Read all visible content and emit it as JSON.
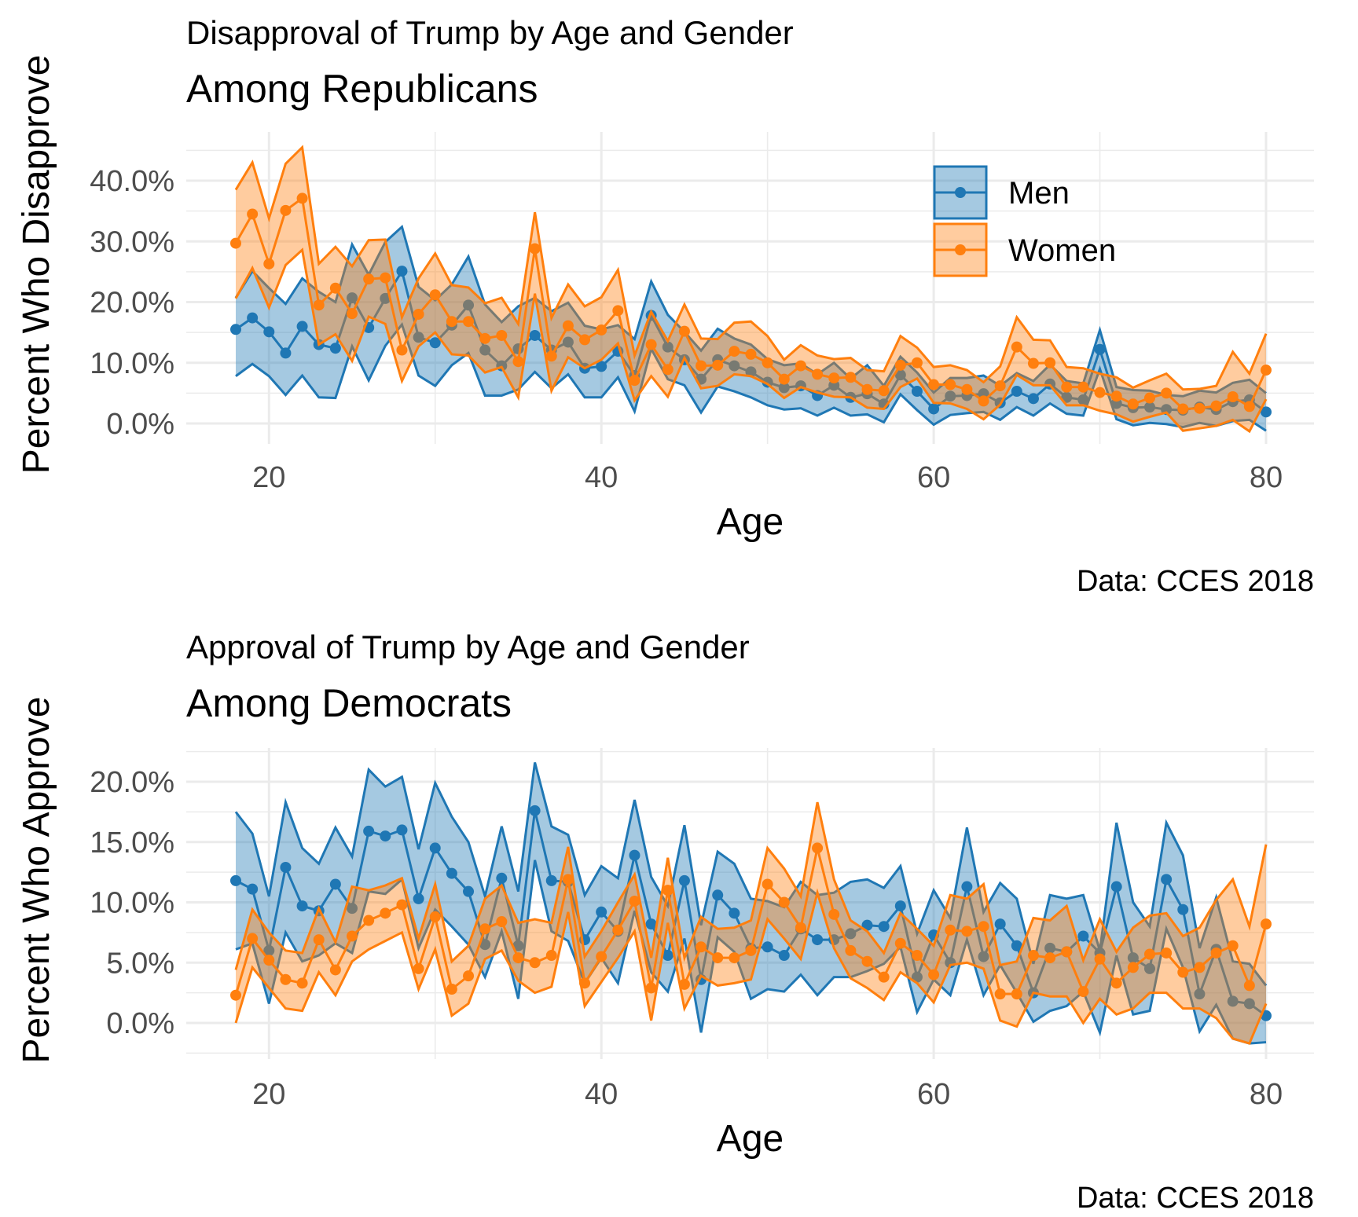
{
  "colors": {
    "men": "#1f77b4",
    "women": "#ff7f0e",
    "grid": "#ebebeb"
  },
  "legend": {
    "position": "top-right",
    "items": [
      "Men",
      "Women"
    ]
  },
  "chart_data": [
    {
      "type": "line",
      "title": "Disapproval of Trump by Age and Gender",
      "subtitle": "Among Republicans",
      "xlabel": "Age",
      "ylabel": "Percent Who Disapprove",
      "caption": "Data: CCES 2018",
      "xlim": [
        18,
        80
      ],
      "ylim": [
        -4,
        48
      ],
      "x_ticks": [
        20,
        40,
        60,
        80
      ],
      "y_ticks": [
        0,
        0.1,
        0.2,
        0.3,
        0.4
      ],
      "y_tick_labels": [
        "0.0%",
        "10.0%",
        "20.0%",
        "30.0%",
        "40.0%"
      ],
      "grid": true,
      "legend_position": "top-right",
      "x": [
        18,
        19,
        20,
        21,
        22,
        23,
        24,
        25,
        26,
        27,
        28,
        29,
        30,
        31,
        32,
        33,
        34,
        35,
        36,
        37,
        38,
        39,
        40,
        41,
        42,
        43,
        44,
        45,
        46,
        47,
        48,
        49,
        50,
        51,
        52,
        53,
        54,
        55,
        56,
        57,
        58,
        59,
        60,
        61,
        62,
        63,
        64,
        65,
        66,
        67,
        68,
        69,
        70,
        71,
        72,
        73,
        74,
        75,
        76,
        77,
        78,
        79,
        80
      ],
      "series": [
        {
          "name": "Men",
          "values": [
            15.5,
            17.4,
            15.1,
            11.6,
            16.0,
            13.0,
            12.4,
            20.7,
            15.8,
            20.6,
            25.1,
            14.2,
            13.3,
            16.2,
            19.5,
            12.1,
            9.5,
            12.3,
            14.5,
            12.1,
            13.4,
            9.1,
            9.4,
            11.9,
            7.9,
            17.8,
            12.6,
            10.5,
            7.3,
            10.5,
            9.5,
            8.5,
            6.8,
            5.9,
            6.2,
            4.6,
            6.3,
            4.3,
            4.9,
            3.2,
            8.0,
            5.3,
            2.4,
            4.5,
            4.6,
            4.9,
            3.4,
            5.3,
            4.1,
            6.5,
            4.3,
            3.9,
            12.2,
            3.3,
            2.6,
            2.7,
            2.3,
            2.2,
            2.7,
            2.3,
            3.6,
            3.9,
            1.9
          ],
          "lower": [
            7.8,
            9.8,
            7.8,
            4.7,
            7.9,
            4.3,
            4.2,
            12.7,
            7.1,
            12.8,
            16.3,
            7.9,
            6.2,
            9.6,
            11.6,
            4.6,
            4.6,
            5.6,
            8.5,
            5.8,
            8.1,
            4.3,
            4.3,
            7.6,
            2.0,
            12.3,
            7.3,
            6.3,
            1.8,
            6.1,
            5.3,
            4.3,
            3.0,
            2.3,
            2.5,
            1.3,
            2.6,
            1.3,
            1.5,
            0.2,
            4.8,
            2.2,
            -0.2,
            1.4,
            1.7,
            1.9,
            0.6,
            2.7,
            1.3,
            3.3,
            1.6,
            1.3,
            9.0,
            0.7,
            -0.3,
            0.1,
            -0.1,
            -0.6,
            0.1,
            -0.4,
            0.4,
            0.6,
            -1.2
          ],
          "upper": [
            20.7,
            25.1,
            22.3,
            19.7,
            23.9,
            21.7,
            20.0,
            29.5,
            24.5,
            29.9,
            32.4,
            22.5,
            20.3,
            22.9,
            27.5,
            19.6,
            16.7,
            19.3,
            20.7,
            18.5,
            19.9,
            16.1,
            15.5,
            16.2,
            13.9,
            23.4,
            17.9,
            15.1,
            12.0,
            15.6,
            14.0,
            13.0,
            10.6,
            9.6,
            9.9,
            8.1,
            10.0,
            7.4,
            9.6,
            6.2,
            11.0,
            8.4,
            5.1,
            7.5,
            7.5,
            7.9,
            6.2,
            8.3,
            7.0,
            9.7,
            7.0,
            6.6,
            15.4,
            6.0,
            5.5,
            5.4,
            4.7,
            4.5,
            5.4,
            5.1,
            6.7,
            7.2,
            5.0
          ]
        },
        {
          "name": "Women",
          "values": [
            29.7,
            34.5,
            26.3,
            35.1,
            37.1,
            19.5,
            22.3,
            18.1,
            23.8,
            24.0,
            12.1,
            18.0,
            21.2,
            16.8,
            16.8,
            14.0,
            14.5,
            10.2,
            28.8,
            11.1,
            16.1,
            13.8,
            15.4,
            18.6,
            7.1,
            13.0,
            8.9,
            15.2,
            9.5,
            9.6,
            11.9,
            11.4,
            10.0,
            7.3,
            9.5,
            8.1,
            7.5,
            7.6,
            5.6,
            5.4,
            9.6,
            10.0,
            6.4,
            6.4,
            5.6,
            3.7,
            6.2,
            12.6,
            9.9,
            10.0,
            6.0,
            6.0,
            5.1,
            4.5,
            3.2,
            4.2,
            5.0,
            2.4,
            2.5,
            2.9,
            4.4,
            2.8,
            8.8
          ],
          "lower": [
            20.6,
            25.6,
            19.1,
            26.1,
            28.6,
            13.0,
            14.7,
            10.3,
            17.6,
            16.4,
            7.0,
            12.7,
            15.0,
            11.4,
            11.2,
            8.4,
            9.3,
            4.3,
            21.4,
            5.4,
            10.9,
            9.1,
            10.5,
            13.2,
            3.8,
            7.8,
            4.4,
            10.8,
            5.8,
            6.2,
            8.1,
            7.8,
            6.5,
            4.2,
            6.0,
            5.1,
            4.4,
            4.3,
            2.6,
            2.4,
            6.0,
            7.4,
            3.4,
            3.3,
            2.4,
            0.7,
            3.1,
            8.0,
            6.3,
            6.3,
            3.0,
            3.0,
            2.1,
            1.5,
            0.3,
            1.1,
            1.8,
            -1.2,
            -0.8,
            -0.4,
            0.6,
            -1.3,
            4.0
          ],
          "upper": [
            38.5,
            43.0,
            33.8,
            42.8,
            45.5,
            26.3,
            29.1,
            25.9,
            30.2,
            30.3,
            17.5,
            23.9,
            28.0,
            22.8,
            22.4,
            19.8,
            20.7,
            16.4,
            34.8,
            17.4,
            22.9,
            19.3,
            20.8,
            25.3,
            11.2,
            18.4,
            13.6,
            19.6,
            14.0,
            13.9,
            16.6,
            16.8,
            14.4,
            10.5,
            12.9,
            11.2,
            10.6,
            10.8,
            8.8,
            8.6,
            14.4,
            12.5,
            9.3,
            9.6,
            8.8,
            6.8,
            9.4,
            17.5,
            13.8,
            13.7,
            9.3,
            9.1,
            8.2,
            7.6,
            5.9,
            7.1,
            8.2,
            5.6,
            5.7,
            6.2,
            11.8,
            8.2,
            14.8
          ]
        }
      ]
    },
    {
      "type": "line",
      "title": "Approval of Trump by Age and Gender",
      "subtitle": "Among Democrats",
      "xlabel": "Age",
      "ylabel": "Percent Who Approve",
      "caption": "Data: CCES 2018",
      "xlim": [
        18,
        80
      ],
      "ylim": [
        -2.5,
        22.5
      ],
      "x_ticks": [
        20,
        40,
        60,
        80
      ],
      "y_ticks": [
        0,
        0.05,
        0.1,
        0.15,
        0.2
      ],
      "y_tick_labels": [
        "0.0%",
        "5.0%",
        "10.0%",
        "15.0%",
        "20.0%"
      ],
      "grid": true,
      "x": [
        18,
        19,
        20,
        21,
        22,
        23,
        24,
        25,
        26,
        27,
        28,
        29,
        30,
        31,
        32,
        33,
        34,
        35,
        36,
        37,
        38,
        39,
        40,
        41,
        42,
        43,
        44,
        45,
        46,
        47,
        48,
        49,
        50,
        51,
        52,
        53,
        54,
        55,
        56,
        57,
        58,
        59,
        60,
        61,
        62,
        63,
        64,
        65,
        66,
        67,
        68,
        69,
        70,
        71,
        72,
        73,
        74,
        75,
        76,
        77,
        78,
        79,
        80
      ],
      "series": [
        {
          "name": "Men",
          "values": [
            11.8,
            11.1,
            6.0,
            12.9,
            9.7,
            9.3,
            11.5,
            9.5,
            15.9,
            15.5,
            16.0,
            10.3,
            14.5,
            12.4,
            10.9,
            6.5,
            12.0,
            6.4,
            17.6,
            11.8,
            11.7,
            6.9,
            9.2,
            7.6,
            13.9,
            8.2,
            5.6,
            11.8,
            3.6,
            10.6,
            9.1,
            6.2,
            6.3,
            5.6,
            7.8,
            6.9,
            6.9,
            7.4,
            8.1,
            8.0,
            9.7,
            3.8,
            7.3,
            5.0,
            11.3,
            5.5,
            8.2,
            6.4,
            2.5,
            6.2,
            5.9,
            7.2,
            5.8,
            11.3,
            5.4,
            4.5,
            11.9,
            9.4,
            2.4,
            6.1,
            1.8,
            1.6,
            0.6
          ],
          "lower": [
            6.1,
            6.6,
            1.6,
            7.5,
            5.1,
            5.6,
            6.6,
            5.8,
            10.9,
            10.7,
            11.9,
            6.2,
            9.4,
            8.0,
            6.5,
            3.8,
            7.6,
            2.0,
            13.5,
            7.6,
            6.8,
            3.3,
            5.4,
            3.3,
            9.3,
            4.2,
            2.6,
            7.0,
            -0.8,
            7.1,
            5.9,
            2.0,
            2.8,
            2.6,
            4.0,
            2.3,
            3.8,
            3.8,
            4.3,
            4.9,
            6.3,
            0.9,
            3.6,
            2.3,
            6.9,
            2.3,
            4.8,
            2.5,
            0.1,
            1.0,
            1.4,
            2.6,
            -0.8,
            5.6,
            0.7,
            1.0,
            7.8,
            4.6,
            -0.7,
            1.5,
            -1.3,
            -1.7,
            -1.6
          ],
          "upper": [
            17.5,
            15.7,
            10.5,
            18.3,
            14.5,
            13.2,
            16.2,
            13.8,
            21.0,
            19.6,
            20.4,
            14.4,
            19.9,
            17.1,
            15.0,
            10.5,
            16.3,
            10.9,
            21.6,
            16.3,
            15.6,
            10.6,
            13.0,
            12.0,
            18.5,
            12.1,
            9.7,
            16.4,
            8.1,
            14.2,
            13.2,
            10.3,
            10.1,
            9.6,
            11.7,
            10.6,
            10.8,
            11.7,
            11.9,
            11.2,
            13.0,
            7.4,
            11.0,
            8.7,
            16.2,
            9.2,
            11.6,
            10.3,
            4.9,
            10.6,
            10.3,
            10.6,
            6.0,
            16.6,
            10.0,
            8.0,
            16.6,
            13.9,
            6.2,
            10.4,
            5.1,
            4.9,
            3.1
          ]
        },
        {
          "name": "Women",
          "values": [
            2.3,
            7.0,
            5.2,
            3.6,
            3.3,
            6.9,
            4.4,
            7.2,
            8.5,
            9.1,
            9.8,
            4.5,
            8.8,
            2.8,
            3.9,
            7.8,
            8.4,
            5.4,
            5.0,
            5.6,
            11.9,
            3.3,
            5.5,
            7.7,
            10.1,
            2.9,
            11.0,
            3.2,
            6.3,
            5.4,
            5.4,
            6.0,
            11.5,
            10.0,
            7.9,
            14.5,
            9.0,
            6.0,
            5.1,
            3.8,
            6.6,
            5.6,
            4.0,
            7.7,
            7.6,
            8.0,
            2.4,
            2.4,
            5.6,
            5.4,
            5.9,
            2.6,
            5.3,
            3.3,
            4.6,
            5.7,
            5.8,
            4.2,
            4.6,
            5.8,
            6.4,
            3.1,
            8.2
          ],
          "lower": [
            0.0,
            4.6,
            2.9,
            1.2,
            1.0,
            4.2,
            2.3,
            5.1,
            6.1,
            6.8,
            7.5,
            2.8,
            6.1,
            0.6,
            1.6,
            5.3,
            6.0,
            3.5,
            2.5,
            3.0,
            9.2,
            1.4,
            3.4,
            5.4,
            7.6,
            0.2,
            8.3,
            1.2,
            3.9,
            3.1,
            3.3,
            3.6,
            8.6,
            7.0,
            5.3,
            10.8,
            6.2,
            3.7,
            2.9,
            1.9,
            4.2,
            3.3,
            1.7,
            4.8,
            5.0,
            4.5,
            0.2,
            -0.3,
            2.5,
            2.2,
            2.2,
            0.0,
            2.0,
            0.7,
            1.2,
            2.5,
            2.5,
            1.2,
            1.2,
            0.4,
            -1.3,
            -1.7,
            1.6
          ],
          "upper": [
            4.4,
            9.4,
            7.5,
            6.0,
            5.8,
            9.5,
            6.7,
            11.3,
            11.0,
            11.4,
            12.0,
            7.0,
            11.5,
            5.1,
            6.4,
            10.3,
            11.4,
            8.3,
            8.6,
            8.3,
            14.6,
            5.5,
            7.6,
            10.0,
            12.3,
            5.4,
            13.7,
            5.4,
            8.8,
            7.8,
            7.9,
            8.5,
            14.5,
            12.8,
            10.5,
            18.3,
            11.9,
            8.5,
            7.6,
            5.8,
            9.1,
            7.8,
            6.4,
            10.6,
            10.3,
            11.5,
            4.8,
            5.1,
            8.7,
            8.5,
            9.7,
            5.2,
            8.6,
            5.9,
            7.9,
            8.9,
            9.1,
            7.2,
            7.9,
            10.2,
            11.9,
            8.0,
            14.8
          ]
        }
      ]
    }
  ]
}
